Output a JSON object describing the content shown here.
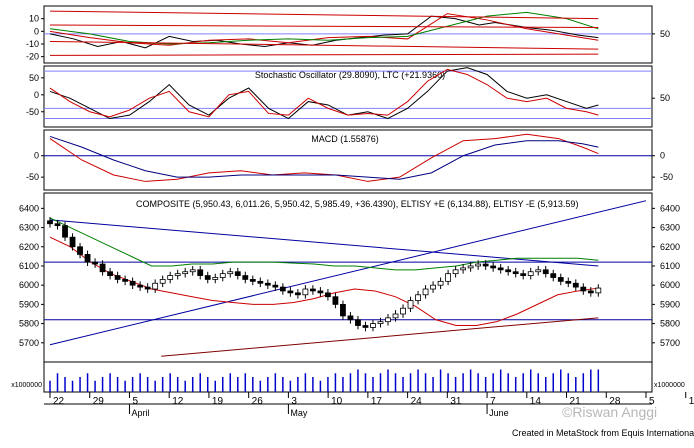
{
  "watermark": "©Riswan Anggi",
  "credit": "Created in MetaStock from Equis International",
  "chart_data": [
    {
      "type": "line",
      "panel": "top-oscillator",
      "title": "",
      "ylim": [
        -25,
        20
      ],
      "left_ticks": [
        "10",
        "0",
        "-10",
        "-20"
      ],
      "left_tick_values": [
        10,
        0,
        -10,
        -20
      ],
      "right_ticks": [
        "50"
      ],
      "right_tick_values": [
        -2
      ],
      "series": [
        {
          "color": "#000000",
          "x": [
            0,
            6,
            12,
            18,
            24,
            30,
            36,
            42,
            48,
            54,
            60,
            66,
            72,
            78,
            84,
            90,
            96,
            102,
            108,
            112,
            120,
            126,
            133,
            138
          ],
          "y": [
            -2,
            -6,
            -12,
            -8,
            -13,
            -4,
            -8,
            -7,
            -10,
            -12,
            -9,
            -11,
            -7,
            -5,
            -3,
            -2,
            12,
            10,
            5,
            7,
            3,
            1,
            -3,
            -5
          ]
        },
        {
          "color": "#cc0000",
          "x": [
            0,
            10,
            20,
            30,
            40,
            50,
            60,
            70,
            80,
            90,
            100,
            110,
            120,
            130,
            138
          ],
          "y": [
            0,
            -5,
            -9,
            -11,
            -7,
            -6,
            -9,
            -5,
            -4,
            -6,
            14,
            9,
            2,
            -3,
            -7
          ]
        },
        {
          "color": "#008000",
          "x": [
            0,
            10,
            20,
            30,
            40,
            50,
            60,
            70,
            80,
            90,
            100,
            110,
            120,
            130,
            138
          ],
          "y": [
            2,
            -2,
            -8,
            -10,
            -9,
            -7,
            -6,
            -7,
            -5,
            -4,
            4,
            12,
            15,
            10,
            2
          ]
        },
        {
          "color": "#cc0000",
          "x": [
            0,
            138
          ],
          "y": [
            16,
            10
          ]
        },
        {
          "color": "#cc0000",
          "x": [
            0,
            138
          ],
          "y": [
            5,
            3
          ]
        },
        {
          "color": "#cc0000",
          "x": [
            0,
            138
          ],
          "y": [
            -8,
            -14
          ]
        },
        {
          "color": "#cc0000",
          "x": [
            0,
            138
          ],
          "y": [
            -19,
            -18
          ]
        }
      ]
    },
    {
      "type": "line",
      "panel": "stochastic",
      "title": "Stochastic Oscillator (29.8090), LTC (+21.9360)",
      "ylim": [
        -95,
        85
      ],
      "left_ticks": [
        "50",
        "0",
        "-50"
      ],
      "left_tick_values": [
        50,
        0,
        -50
      ],
      "right_ticks": [
        "50"
      ],
      "right_tick_values": [
        -10
      ],
      "series": [
        {
          "color": "#000000",
          "x": [
            0,
            5,
            10,
            15,
            20,
            25,
            30,
            35,
            40,
            45,
            50,
            55,
            60,
            65,
            70,
            75,
            80,
            85,
            90,
            95,
            100,
            105,
            110,
            115,
            120,
            125,
            130,
            135,
            138
          ],
          "y": [
            10,
            -10,
            -40,
            -70,
            -60,
            -20,
            30,
            -30,
            -60,
            -10,
            20,
            -40,
            -70,
            -20,
            -30,
            -60,
            -50,
            -70,
            -40,
            10,
            70,
            80,
            60,
            10,
            -10,
            0,
            -20,
            -40,
            -30
          ]
        },
        {
          "color": "#cc0000",
          "x": [
            0,
            5,
            10,
            15,
            20,
            25,
            30,
            35,
            40,
            45,
            50,
            55,
            60,
            65,
            70,
            75,
            80,
            85,
            90,
            95,
            100,
            105,
            110,
            115,
            120,
            125,
            130,
            135,
            138
          ],
          "y": [
            20,
            -20,
            -50,
            -65,
            -45,
            -10,
            10,
            -50,
            -65,
            0,
            10,
            -55,
            -60,
            -10,
            -40,
            -60,
            -55,
            -60,
            -20,
            40,
            75,
            60,
            30,
            -10,
            -20,
            -10,
            -40,
            -50,
            -60
          ]
        }
      ]
    },
    {
      "type": "line",
      "panel": "macd",
      "title": "MACD (1.55876)",
      "ylim": [
        -80,
        60
      ],
      "left_ticks": [
        "0",
        "-50"
      ],
      "left_tick_values": [
        0,
        -50
      ],
      "right_ticks": [
        "0",
        "-50"
      ],
      "right_tick_values": [
        0,
        -50
      ],
      "series": [
        {
          "color": "#cc0000",
          "x": [
            0,
            8,
            16,
            24,
            32,
            40,
            48,
            56,
            64,
            72,
            80,
            88,
            96,
            104,
            112,
            120,
            128,
            134,
            138
          ],
          "y": [
            40,
            -10,
            -45,
            -60,
            -55,
            -40,
            -35,
            -45,
            -40,
            -45,
            -60,
            -50,
            -5,
            35,
            40,
            50,
            40,
            20,
            5
          ]
        },
        {
          "color": "#000080",
          "x": [
            0,
            8,
            16,
            24,
            32,
            40,
            48,
            56,
            64,
            72,
            80,
            88,
            96,
            104,
            112,
            120,
            128,
            134,
            138
          ],
          "y": [
            45,
            20,
            -10,
            -35,
            -50,
            -50,
            -45,
            -45,
            -45,
            -45,
            -50,
            -55,
            -40,
            0,
            25,
            35,
            35,
            28,
            20
          ]
        }
      ]
    },
    {
      "type": "candlestick",
      "panel": "price",
      "title": "COMPOSITE (5,950.43, 6,011.26, 5,950.42, 5,985.49, +36.4390), ELTISY +E (6,134.88), ELTISY -E (5,913.59)",
      "ylim": [
        5600,
        6480
      ],
      "left_ticks": [
        "6400",
        "6300",
        "6200",
        "6100",
        "6000",
        "5900",
        "5800",
        "5700"
      ],
      "right_ticks": [
        "6400",
        "6300",
        "6200",
        "6100",
        "6000",
        "5900",
        "5800",
        "5700"
      ],
      "tick_values": [
        6400,
        6300,
        6200,
        6100,
        6000,
        5900,
        5800,
        5700
      ],
      "close": [
        6320,
        6310,
        6250,
        6200,
        6160,
        6120,
        6110,
        6070,
        6050,
        6030,
        6020,
        6000,
        5990,
        5980,
        6010,
        6030,
        6050,
        6060,
        6070,
        6080,
        6050,
        6030,
        6040,
        6060,
        6070,
        6050,
        6030,
        6020,
        6010,
        6000,
        5990,
        5970,
        5960,
        5950,
        5980,
        5970,
        5960,
        5940,
        5900,
        5840,
        5820,
        5790,
        5780,
        5800,
        5810,
        5830,
        5850,
        5880,
        5920,
        5950,
        5980,
        6000,
        6020,
        6060,
        6080,
        6090,
        6100,
        6110,
        6100,
        6090,
        6080,
        6070,
        6060,
        6050,
        6070,
        6080,
        6060,
        6040,
        6020,
        6010,
        5990,
        5970,
        5960,
        5985
      ],
      "upper_band": [
        6350,
        6300,
        6250,
        6200,
        6150,
        6100,
        6100,
        6110,
        6110,
        6120,
        6120,
        6120,
        6115,
        6110,
        6100,
        6100,
        6090,
        6080,
        6080,
        6090,
        6100,
        6120,
        6130,
        6140,
        6140,
        6140,
        6140,
        6130
      ],
      "lower_band": [
        6250,
        6200,
        6120,
        6060,
        6020,
        5980,
        5960,
        5940,
        5920,
        5910,
        5900,
        5900,
        5910,
        5930,
        5960,
        5980,
        5970,
        5940,
        5890,
        5820,
        5790,
        5790,
        5810,
        5850,
        5900,
        5950,
        5970,
        5985
      ],
      "trendlines": [
        {
          "color": "#0000a0",
          "x": [
            0,
            138
          ],
          "y": [
            6340,
            6100
          ]
        },
        {
          "color": "#0000a0",
          "x": [
            0,
            150
          ],
          "y": [
            5690,
            6440
          ]
        },
        {
          "color": "#800000",
          "x": [
            28,
            138
          ],
          "y": [
            5630,
            5830
          ]
        }
      ],
      "hlines": [
        {
          "color": "#0000a0",
          "y": 6120
        },
        {
          "color": "#0000a0",
          "y": 5820
        }
      ]
    },
    {
      "type": "bar",
      "panel": "volume",
      "ylabel": "x1000000",
      "left_ticks": [
        "x1000000"
      ],
      "right_ticks": [
        "x1000000"
      ],
      "values": [
        3,
        5,
        4,
        3,
        4,
        5,
        3,
        4,
        5,
        4,
        3,
        4,
        5,
        4,
        3,
        4,
        5,
        4,
        3,
        4,
        5,
        4,
        3,
        4,
        5,
        4,
        5,
        4,
        3,
        4,
        5,
        4,
        3,
        4,
        5,
        4,
        3,
        4,
        5,
        4,
        5,
        6,
        5,
        4,
        5,
        6,
        5,
        4,
        5,
        6,
        5,
        4,
        6,
        5,
        4,
        5,
        6,
        5,
        4,
        5,
        6,
        5,
        4,
        5,
        6,
        5,
        4,
        5,
        6,
        5,
        4,
        5,
        6,
        6
      ],
      "x_tick_labels": [
        "22",
        "29",
        "5",
        "12",
        "19",
        "26",
        "3",
        "10",
        "17",
        "24",
        "31",
        "7",
        "14",
        "21",
        "28",
        "5",
        "12"
      ],
      "month_labels": [
        "April",
        "May",
        "June"
      ]
    }
  ]
}
